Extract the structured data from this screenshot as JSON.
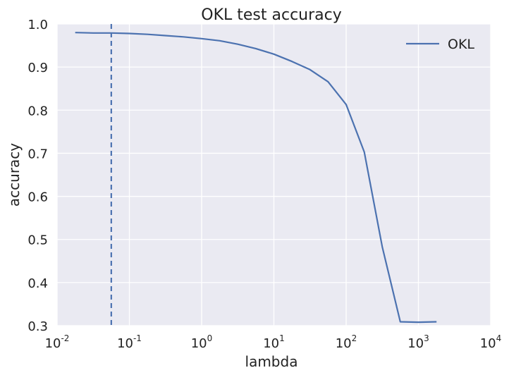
{
  "chart_data": {
    "type": "line",
    "title": "OKL test accuracy",
    "xlabel": "lambda",
    "ylabel": "accuracy",
    "xscale": "log",
    "xlim": [
      0.01,
      10000
    ],
    "ylim": [
      0.3,
      1.0
    ],
    "x_ticks": [
      {
        "base": "10",
        "exp": "-2",
        "value": 0.01
      },
      {
        "base": "10",
        "exp": "-1",
        "value": 0.1
      },
      {
        "base": "10",
        "exp": "0",
        "value": 1
      },
      {
        "base": "10",
        "exp": "1",
        "value": 10
      },
      {
        "base": "10",
        "exp": "2",
        "value": 100
      },
      {
        "base": "10",
        "exp": "3",
        "value": 1000
      },
      {
        "base": "10",
        "exp": "4",
        "value": 10000
      }
    ],
    "y_ticks": [
      "0.3",
      "0.4",
      "0.5",
      "0.6",
      "0.7",
      "0.8",
      "0.9",
      "1.0"
    ],
    "grid": true,
    "legend_position": "top-right",
    "series": [
      {
        "name": "OKL",
        "color": "#4c72b0",
        "x": [
          0.0178,
          0.0316,
          0.0562,
          0.1,
          0.178,
          0.316,
          0.562,
          1.0,
          1.78,
          3.16,
          5.62,
          10.0,
          17.8,
          31.6,
          56.2,
          100,
          178,
          316,
          562,
          1000,
          1780
        ],
        "y": [
          0.98,
          0.979,
          0.979,
          0.978,
          0.976,
          0.973,
          0.97,
          0.966,
          0.961,
          0.953,
          0.943,
          0.93,
          0.913,
          0.894,
          0.866,
          0.813,
          0.703,
          0.483,
          0.309,
          0.308,
          0.309
        ]
      }
    ],
    "reference_line": {
      "axis": "x",
      "value": 0.0562,
      "style": "dashed",
      "color": "#4c72b0"
    }
  }
}
